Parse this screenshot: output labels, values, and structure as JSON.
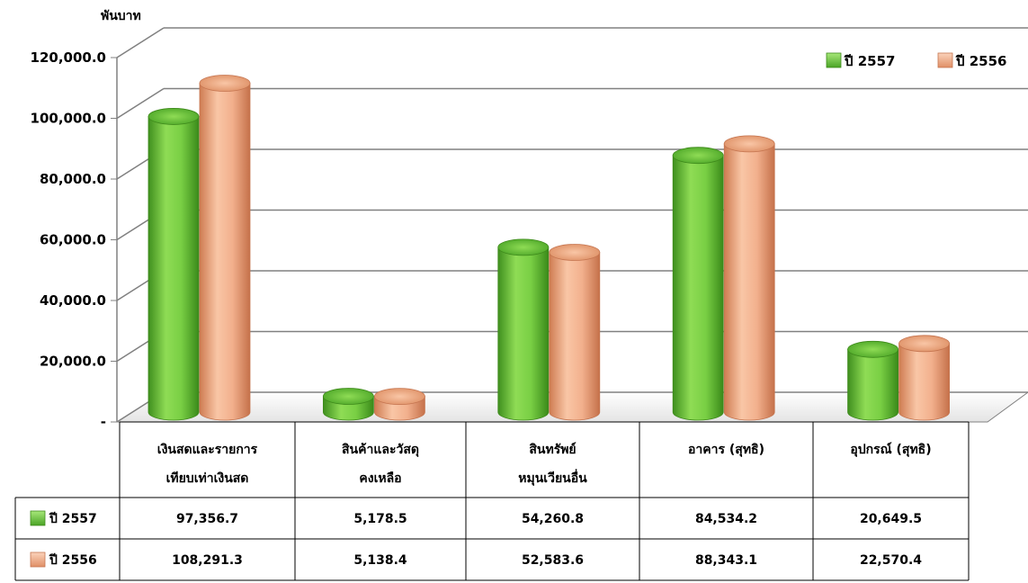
{
  "unit_label": "พันบาท",
  "colors": {
    "series_2557": "#6cc33a",
    "series_2556": "#f0aa84",
    "gridline": "#808080",
    "table_border": "#000000"
  },
  "chart_data": {
    "type": "bar",
    "style": "3d-cylinder",
    "ylabel": "พันบาท",
    "ylim": [
      0,
      120000
    ],
    "yticks": [
      "-",
      "20,000.0",
      "40,000.0",
      "60,000.0",
      "80,000.0",
      "100,000.0",
      "120,000.0"
    ],
    "grid": true,
    "legend_position": "top-right",
    "categories": [
      [
        "เงินสดและรายการ",
        "เทียบเท่าเงินสด"
      ],
      [
        "สินค้าและวัสดุ",
        "คงเหลือ"
      ],
      [
        "สินทรัพย์",
        "หมุนเวียนอื่น"
      ],
      [
        "อาคาร (สุทธิ)"
      ],
      [
        "อุปกรณ์ (สุทธิ)"
      ]
    ],
    "series": [
      {
        "name": "ปี 2557",
        "color": "#6cc33a",
        "values": [
          97356.7,
          5178.5,
          54260.8,
          84534.2,
          20649.5
        ],
        "labels": [
          "97,356.7",
          "5,178.5",
          "54,260.8",
          "84,534.2",
          "20,649.5"
        ]
      },
      {
        "name": "ปี 2556",
        "color": "#f0aa84",
        "values": [
          108291.3,
          5138.4,
          52583.6,
          88343.1,
          22570.4
        ],
        "labels": [
          "108,291.3",
          "5,138.4",
          "52,583.6",
          "88,343.1",
          "22,570.4"
        ]
      }
    ],
    "legend_order": [
      0,
      1
    ],
    "table_order": [
      0,
      1
    ]
  }
}
